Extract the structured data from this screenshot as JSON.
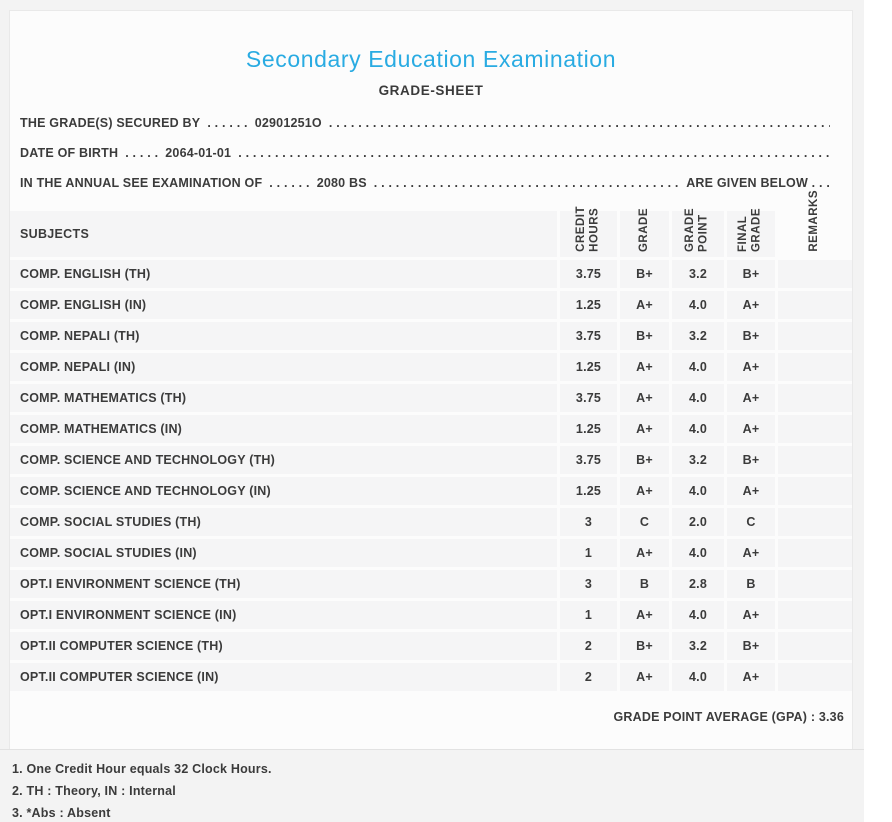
{
  "colors": {
    "accent_blue": "#29abe2",
    "text": "#3b3b3b",
    "row_bg": "#f5f5f6",
    "page_bg": "#f3f3f3"
  },
  "header": {
    "title": "Secondary Education Examination",
    "subtitle": "GRADE-SHEET"
  },
  "info": {
    "dots_filler": ". . . . . . . . . . . . . . . . . . . . . . . . . . . . . . . . . . . . . . . . . . . . . . . . . . . . . . . . . . . . . . . . . . . . . . . . . . . . . . . . . . . . . . . . . . . . . . . . . . . . . . . . . . . . . . . .",
    "line1": {
      "label": "THE GRADE(S) SECURED BY",
      "sep": ". . . . . .",
      "value": "02901251O"
    },
    "line2": {
      "label": "DATE OF BIRTH",
      "sep": ". . . . .",
      "value": "2064-01-01"
    },
    "line3": {
      "label": "IN THE ANNUAL SEE EXAMINATION OF",
      "sep": ". . . . . .",
      "value": "2080 BS",
      "tail": "ARE GIVEN BELOW . . ."
    }
  },
  "table": {
    "headers": {
      "subjects": "SUBJECTS",
      "credit_hours": "CREDIT\nHOURS",
      "grade": "GRADE",
      "grade_point": "GRADE\nPOINT",
      "final_grade": "FINAL\nGRADE",
      "remarks": "REMARKS"
    },
    "rows": [
      {
        "subject": "COMP. ENGLISH (TH)",
        "credit_hours": "3.75",
        "grade": "B+",
        "grade_point": "3.2",
        "final_grade": "B+",
        "remarks": ""
      },
      {
        "subject": "COMP. ENGLISH (IN)",
        "credit_hours": "1.25",
        "grade": "A+",
        "grade_point": "4.0",
        "final_grade": "A+",
        "remarks": ""
      },
      {
        "subject": "COMP. NEPALI (TH)",
        "credit_hours": "3.75",
        "grade": "B+",
        "grade_point": "3.2",
        "final_grade": "B+",
        "remarks": ""
      },
      {
        "subject": "COMP. NEPALI (IN)",
        "credit_hours": "1.25",
        "grade": "A+",
        "grade_point": "4.0",
        "final_grade": "A+",
        "remarks": ""
      },
      {
        "subject": "COMP. MATHEMATICS (TH)",
        "credit_hours": "3.75",
        "grade": "A+",
        "grade_point": "4.0",
        "final_grade": "A+",
        "remarks": ""
      },
      {
        "subject": "COMP. MATHEMATICS (IN)",
        "credit_hours": "1.25",
        "grade": "A+",
        "grade_point": "4.0",
        "final_grade": "A+",
        "remarks": ""
      },
      {
        "subject": "COMP. SCIENCE AND TECHNOLOGY (TH)",
        "credit_hours": "3.75",
        "grade": "B+",
        "grade_point": "3.2",
        "final_grade": "B+",
        "remarks": ""
      },
      {
        "subject": "COMP. SCIENCE AND TECHNOLOGY (IN)",
        "credit_hours": "1.25",
        "grade": "A+",
        "grade_point": "4.0",
        "final_grade": "A+",
        "remarks": ""
      },
      {
        "subject": "COMP. SOCIAL STUDIES (TH)",
        "credit_hours": "3",
        "grade": "C",
        "grade_point": "2.0",
        "final_grade": "C",
        "remarks": ""
      },
      {
        "subject": "COMP. SOCIAL STUDIES (IN)",
        "credit_hours": "1",
        "grade": "A+",
        "grade_point": "4.0",
        "final_grade": "A+",
        "remarks": ""
      },
      {
        "subject": "OPT.I ENVIRONMENT SCIENCE (TH)",
        "credit_hours": "3",
        "grade": "B",
        "grade_point": "2.8",
        "final_grade": "B",
        "remarks": ""
      },
      {
        "subject": "OPT.I ENVIRONMENT SCIENCE (IN)",
        "credit_hours": "1",
        "grade": "A+",
        "grade_point": "4.0",
        "final_grade": "A+",
        "remarks": ""
      },
      {
        "subject": "OPT.II COMPUTER SCIENCE (TH)",
        "credit_hours": "2",
        "grade": "B+",
        "grade_point": "3.2",
        "final_grade": "B+",
        "remarks": ""
      },
      {
        "subject": "OPT.II COMPUTER SCIENCE (IN)",
        "credit_hours": "2",
        "grade": "A+",
        "grade_point": "4.0",
        "final_grade": "A+",
        "remarks": ""
      }
    ]
  },
  "summary": {
    "gpa_line": "GRADE POINT AVERAGE (GPA) : 3.36"
  },
  "notes": {
    "items": [
      "1. One Credit Hour equals 32 Clock Hours.",
      "2. TH : Theory, IN : Internal",
      "3. *Abs : Absent"
    ]
  }
}
